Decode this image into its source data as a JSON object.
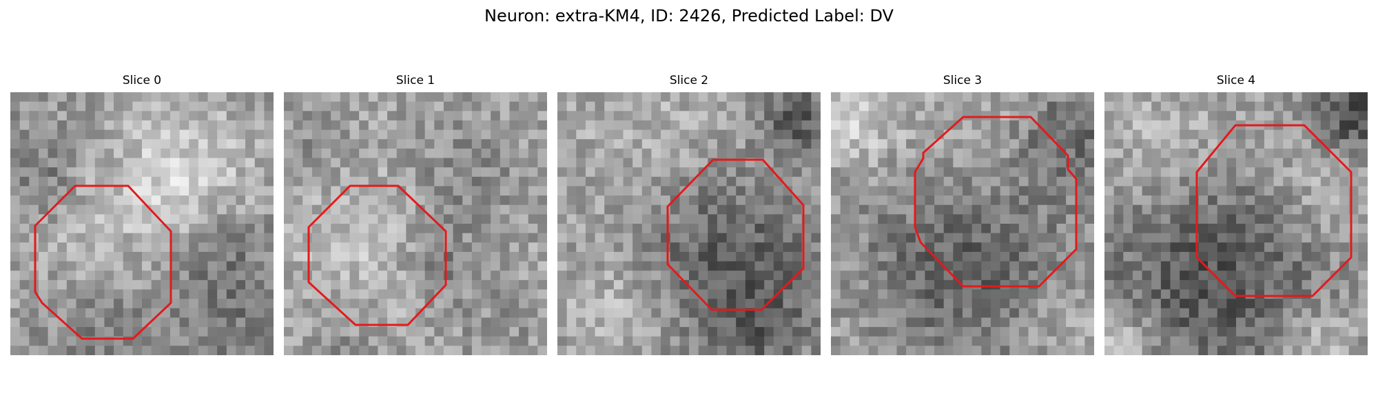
{
  "figure": {
    "title": "Neuron: extra-KM4, ID: 2426, Predicted Label: DV"
  },
  "panels": [
    {
      "title": "Slice 0"
    },
    {
      "title": "Slice 1"
    },
    {
      "title": "Slice 2"
    },
    {
      "title": "Slice 3"
    },
    {
      "title": "Slice 4"
    }
  ],
  "style": {
    "contour_color": "#e31a1c",
    "background": "#ffffff",
    "image_colormap": "grayscale"
  }
}
